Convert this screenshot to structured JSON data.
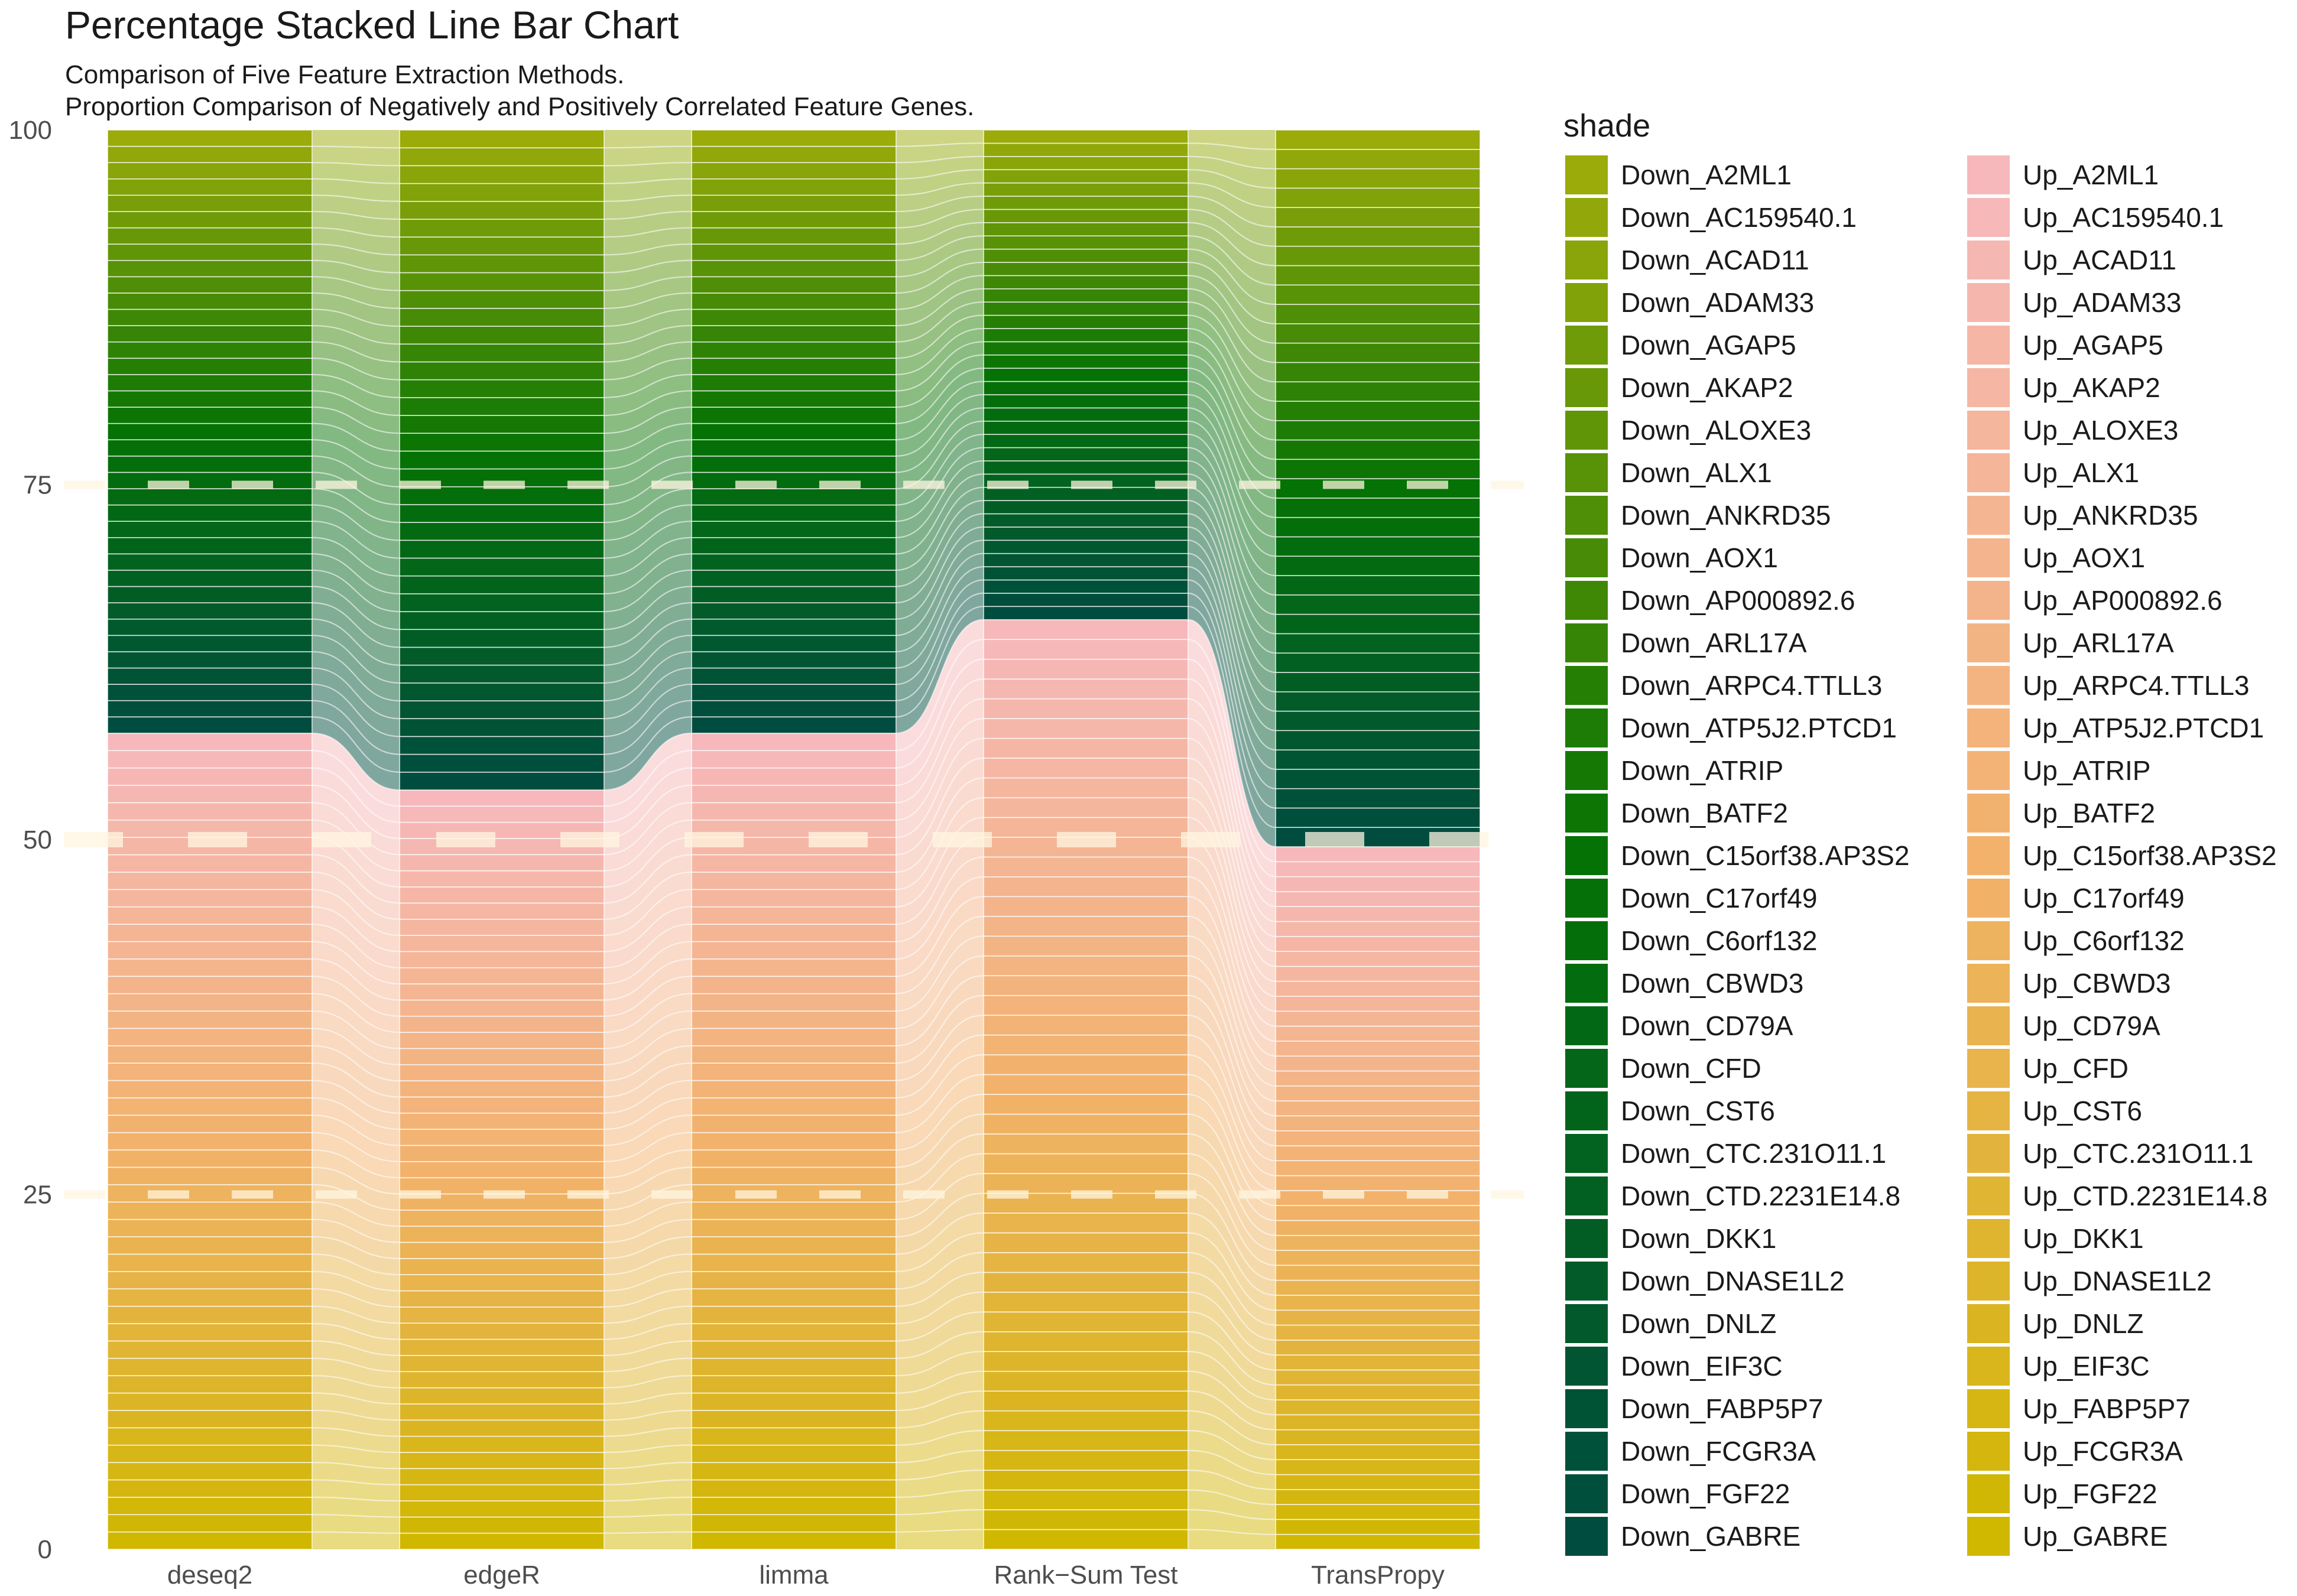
{
  "chart_data": {
    "type": "bar",
    "title": "Percentage Stacked Line Bar Chart",
    "subtitle": [
      "Comparison of Five Feature Extraction Methods.",
      "Proportion Comparison of Negatively and Positively Correlated Feature Genes."
    ],
    "xlabel": "",
    "ylabel": "",
    "ylim": [
      0,
      100
    ],
    "yticks": [
      "0",
      "25",
      "50",
      "75",
      "100"
    ],
    "stacking": "percent",
    "categories": [
      "deseq2",
      "edgeR",
      "limma",
      "Rank−Sum Test",
      "TransPropy"
    ],
    "up_total_percent": [
      57.5,
      53.5,
      57.5,
      65.5,
      49.5
    ],
    "down_total_percent": [
      42.5,
      46.5,
      42.5,
      34.5,
      50.5
    ],
    "up_genes_count": [
      47,
      47,
      47,
      47,
      47
    ],
    "down_genes_count": [
      37,
      37,
      37,
      37,
      37
    ],
    "reference_lines": [
      25,
      50,
      75
    ],
    "legend": {
      "title": "shade",
      "placement": "right",
      "columns": [
        [
          "Down_A2ML1",
          "Down_AC159540.1",
          "Down_ACAD11",
          "Down_ADAM33",
          "Down_AGAP5",
          "Down_AKAP2",
          "Down_ALOXE3",
          "Down_ALX1",
          "Down_ANKRD35",
          "Down_AOX1",
          "Down_AP000892.6",
          "Down_ARL17A",
          "Down_ARPC4.TTLL3",
          "Down_ATP5J2.PTCD1",
          "Down_ATRIP",
          "Down_BATF2",
          "Down_C15orf38.AP3S2",
          "Down_C17orf49",
          "Down_C6orf132",
          "Down_CBWD3",
          "Down_CD79A",
          "Down_CFD",
          "Down_CST6",
          "Down_CTC.231O11.1",
          "Down_CTD.2231E14.8",
          "Down_DKK1",
          "Down_DNASE1L2",
          "Down_DNLZ",
          "Down_EIF3C",
          "Down_FABP5P7",
          "Down_FCGR3A",
          "Down_FGF22",
          "Down_GABRE"
        ],
        [
          "Up_A2ML1",
          "Up_AC159540.1",
          "Up_ACAD11",
          "Up_ADAM33",
          "Up_AGAP5",
          "Up_AKAP2",
          "Up_ALOXE3",
          "Up_ALX1",
          "Up_ANKRD35",
          "Up_AOX1",
          "Up_AP000892.6",
          "Up_ARL17A",
          "Up_ARPC4.TTLL3",
          "Up_ATP5J2.PTCD1",
          "Up_ATRIP",
          "Up_BATF2",
          "Up_C15orf38.AP3S2",
          "Up_C17orf49",
          "Up_C6orf132",
          "Up_CBWD3",
          "Up_CD79A",
          "Up_CFD",
          "Up_CST6",
          "Up_CTC.231O11.1",
          "Up_CTD.2231E14.8",
          "Up_DKK1",
          "Up_DNASE1L2",
          "Up_DNLZ",
          "Up_EIF3C",
          "Up_FABP5P7",
          "Up_FCGR3A",
          "Up_FGF22",
          "Up_GABRE"
        ]
      ]
    },
    "colors": {
      "down_top": "#9aab0a",
      "down_mid": "#047204",
      "down_bottom": "#004d40",
      "up_top": "#f6b8bb",
      "up_mid": "#f2b26c",
      "up_bottom": "#d0b700",
      "reference_line": "#fff6e0"
    }
  }
}
